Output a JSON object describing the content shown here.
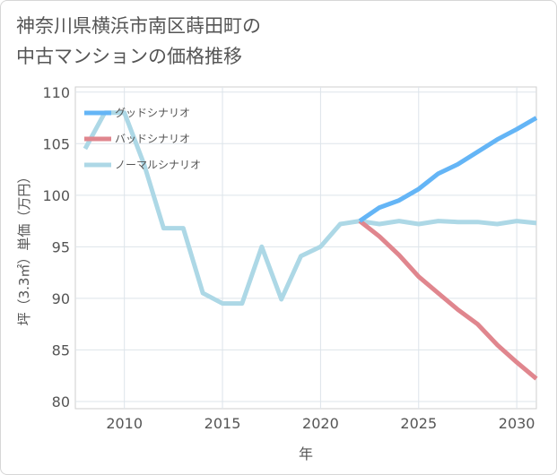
{
  "title_lines": [
    "神奈川県横浜市南区蒔田町の",
    "中古マンションの価格推移"
  ],
  "chart_data": {
    "type": "line",
    "title": "神奈川県横浜市南区蒔田町の中古マンションの価格推移",
    "xlabel": "年",
    "ylabel": "坪（3.3㎡）単価（万円）",
    "xlim": [
      2007.5,
      2031
    ],
    "ylim": [
      79.3,
      110.5
    ],
    "xticks": [
      2010,
      2015,
      2020,
      2025,
      2030
    ],
    "yticks": [
      80,
      85,
      90,
      95,
      100,
      105,
      110
    ],
    "grid": true,
    "legend_position": "top-left",
    "series": [
      {
        "name": "グッドシナリオ",
        "color": "#64b5f6",
        "x": [
          2022,
          2023,
          2024,
          2025,
          2026,
          2027,
          2028,
          2029,
          2030,
          2031
        ],
        "values": [
          97.5,
          98.8,
          99.5,
          100.6,
          102.1,
          103.0,
          104.2,
          105.4,
          106.4,
          107.5
        ]
      },
      {
        "name": "バッドシナリオ",
        "color": "#e0868e",
        "x": [
          2022,
          2023,
          2024,
          2025,
          2026,
          2027,
          2028,
          2029,
          2030,
          2031
        ],
        "values": [
          97.5,
          96.0,
          94.2,
          92.1,
          90.5,
          88.9,
          87.5,
          85.5,
          83.8,
          82.2
        ]
      },
      {
        "name": "ノーマルシナリオ",
        "color": "#add8e6",
        "x": [
          2008,
          2009,
          2010,
          2011,
          2012,
          2013,
          2014,
          2015,
          2016,
          2017,
          2018,
          2019,
          2020,
          2021,
          2022,
          2023,
          2024,
          2025,
          2026,
          2027,
          2028,
          2029,
          2030,
          2031
        ],
        "values": [
          104.5,
          108.0,
          108.0,
          103.0,
          96.8,
          96.8,
          90.5,
          89.5,
          89.5,
          95.0,
          89.9,
          94.1,
          95.0,
          97.2,
          97.5,
          97.2,
          97.5,
          97.2,
          97.5,
          97.4,
          97.4,
          97.2,
          97.5,
          97.3
        ]
      }
    ]
  }
}
